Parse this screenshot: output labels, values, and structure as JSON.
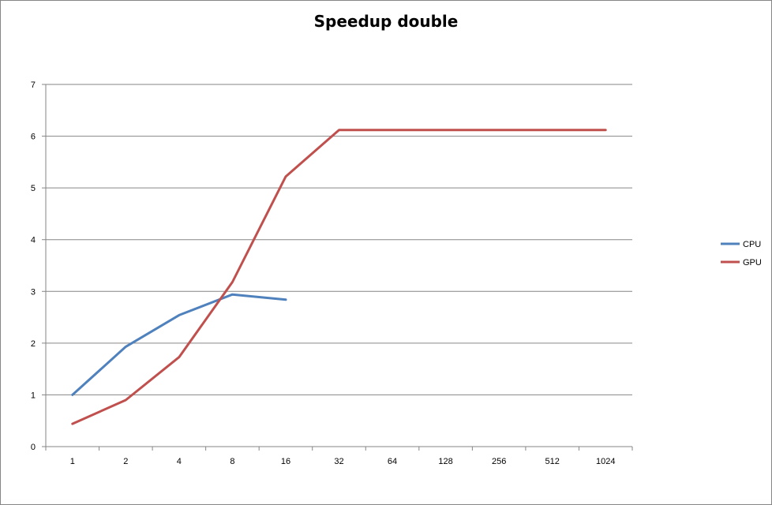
{
  "chart_data": {
    "type": "line",
    "title": "Speedup double",
    "xlabel": "",
    "ylabel": "",
    "categories": [
      "1",
      "2",
      "4",
      "8",
      "16",
      "32",
      "64",
      "128",
      "256",
      "512",
      "1024"
    ],
    "ylim": [
      0,
      7
    ],
    "yticks": [
      0,
      1,
      2,
      3,
      4,
      5,
      6,
      7
    ],
    "grid": "horizontal",
    "legend": "right",
    "series": [
      {
        "name": "CPU",
        "color": "#4F81BD",
        "values": [
          1.0,
          1.93,
          2.54,
          2.94,
          2.84,
          null,
          null,
          null,
          null,
          null,
          null
        ]
      },
      {
        "name": "GPU",
        "color": "#C0504D",
        "values": [
          0.44,
          0.9,
          1.73,
          3.18,
          5.22,
          6.12,
          6.12,
          6.12,
          6.12,
          6.12,
          6.12
        ]
      }
    ]
  }
}
